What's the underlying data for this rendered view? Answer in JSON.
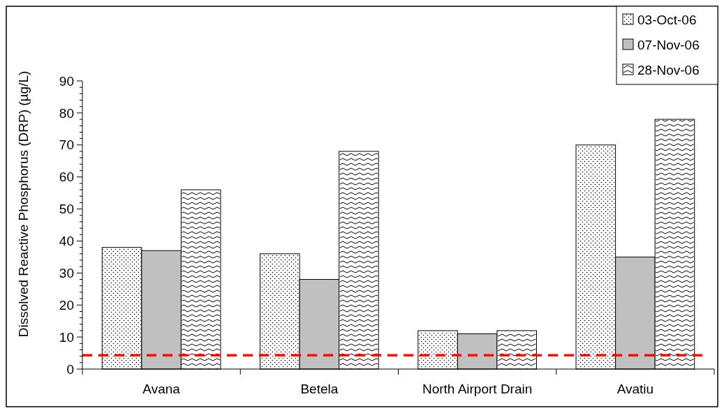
{
  "chart_data": {
    "type": "bar",
    "ylabel": "Dissolved Reactive Phosphorus (DRP) (µg/L)",
    "categories": [
      "Avana",
      "Betela",
      "North Airport Drain",
      "Avatiu"
    ],
    "series": [
      {
        "name": "03-Oct-06",
        "color": "#ffffff",
        "values": [
          38,
          36,
          12,
          70
        ]
      },
      {
        "name": "07-Nov-06",
        "color": "#c0c0c0",
        "values": [
          37,
          28,
          11,
          35
        ]
      },
      {
        "name": "28-Nov-06",
        "color": "#ffffff",
        "values": [
          56,
          68,
          12,
          78
        ]
      }
    ],
    "ylim": [
      0,
      90
    ],
    "yticks": [
      0,
      {
        "value": 2,
        "label": null
      },
      {
        "value": 4,
        "label": null
      },
      {
        "value": 6,
        "label": null
      },
      {
        "value": 8,
        "label": null
      },
      10,
      {
        "value": 12,
        "label": null
      },
      {
        "value": 14,
        "label": null
      },
      {
        "value": 16,
        "label": null
      },
      {
        "value": 18,
        "label": null
      },
      20,
      {
        "value": 22,
        "label": null
      },
      {
        "value": 24,
        "label": null
      },
      {
        "value": 26,
        "label": null
      },
      {
        "value": 28,
        "label": null
      },
      30,
      {
        "value": 32,
        "label": null
      },
      {
        "value": 34,
        "label": null
      },
      {
        "value": 36,
        "label": null
      },
      {
        "value": 38,
        "label": null
      },
      40,
      {
        "value": 42,
        "label": null
      },
      {
        "value": 44,
        "label": null
      },
      {
        "value": 46,
        "label": null
      },
      {
        "value": 48,
        "label": null
      },
      50,
      {
        "value": 52,
        "label": null
      },
      {
        "value": 54,
        "label": null
      },
      {
        "value": 56,
        "label": null
      },
      {
        "value": 58,
        "label": null
      },
      60,
      {
        "value": 62,
        "label": null
      },
      {
        "value": 64,
        "label": null
      },
      {
        "value": 66,
        "label": null
      },
      {
        "value": 68,
        "label": null
      },
      70,
      {
        "value": 72,
        "label": null
      },
      {
        "value": 74,
        "label": null
      },
      {
        "value": 76,
        "label": null
      },
      {
        "value": 78,
        "label": null
      },
      80,
      {
        "value": 82,
        "label": null
      },
      {
        "value": 84,
        "label": null
      },
      {
        "value": 86,
        "label": null
      },
      {
        "value": 88,
        "label": null
      },
      90
    ],
    "ref_lines": [
      {
        "axis": "y",
        "value": 4.3,
        "color": "#ff0000",
        "line_style": "dashed"
      }
    ],
    "legend": "top right",
    "grid": false
  }
}
